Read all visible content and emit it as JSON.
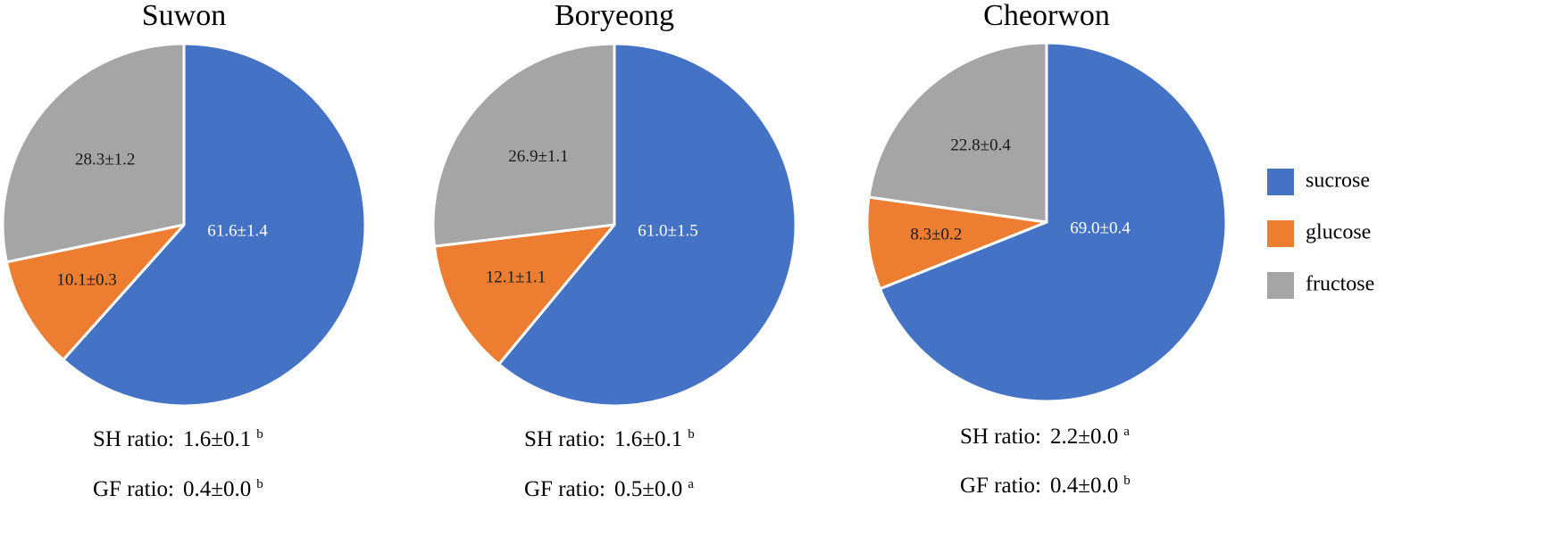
{
  "colors": {
    "sucrose": "#4472C4",
    "glucose": "#ED7D31",
    "fructose": "#A5A5A5",
    "outline": "#ffffff"
  },
  "chart_data": [
    {
      "type": "pie",
      "title": "Suwon",
      "labels": [
        "sucrose",
        "glucose",
        "fructose"
      ],
      "values": [
        61.6,
        10.1,
        28.3
      ],
      "data_labels": [
        "61.6±1.4",
        "10.1±0.3",
        "28.3±1.2"
      ],
      "notes": [
        {
          "label": "SH ratio:",
          "value": "1.6±0.1",
          "sup": "b"
        },
        {
          "label": "GF ratio:",
          "value": "0.4±0.0",
          "sup": "b"
        }
      ]
    },
    {
      "type": "pie",
      "title": "Boryeong",
      "labels": [
        "sucrose",
        "glucose",
        "fructose"
      ],
      "values": [
        61.0,
        12.1,
        26.9
      ],
      "data_labels": [
        "61.0±1.5",
        "12.1±1.1",
        "26.9±1.1"
      ],
      "notes": [
        {
          "label": "SH ratio:",
          "value": "1.6±0.1",
          "sup": "b"
        },
        {
          "label": "GF ratio:",
          "value": "0.5±0.0",
          "sup": "a"
        }
      ]
    },
    {
      "type": "pie",
      "title": "Cheorwon",
      "labels": [
        "sucrose",
        "glucose",
        "fructose"
      ],
      "values": [
        69.0,
        8.3,
        22.8
      ],
      "data_labels": [
        "69.0±0.4",
        "8.3±0.2",
        "22.8±0.4"
      ],
      "notes": [
        {
          "label": "SH ratio:",
          "value": "2.2±0.0",
          "sup": "a"
        },
        {
          "label": "GF ratio:",
          "value": "0.4±0.0",
          "sup": "b"
        }
      ]
    }
  ],
  "legend": {
    "placement": "right",
    "entries": [
      "sucrose",
      "glucose",
      "fructose"
    ]
  }
}
